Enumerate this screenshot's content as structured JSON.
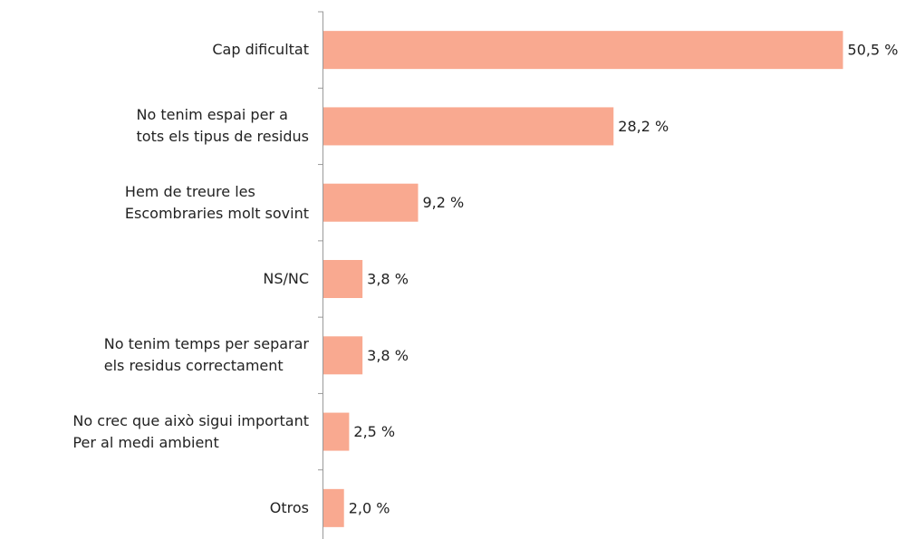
{
  "chart_data": {
    "type": "barh",
    "categories": [
      "Cap dificultat",
      "No tenim espai per a\ntots els tipus de residus",
      "Hem de treure les\nEscombraries molt sovint",
      "NS/NC",
      "No tenim temps per separar\nels residus correctament",
      "No crec que això sigui important\nPer al medi ambient",
      "Otros"
    ],
    "values": [
      50.5,
      28.2,
      9.2,
      3.8,
      3.8,
      2.5,
      2.0
    ],
    "value_labels": [
      "50,5 %",
      "28,2 %",
      "9,2 %",
      "3,8 %",
      "3,8 %",
      "2,5 %",
      "2,0 %"
    ],
    "color": "#f9a990",
    "xlim": [
      0,
      56
    ]
  }
}
